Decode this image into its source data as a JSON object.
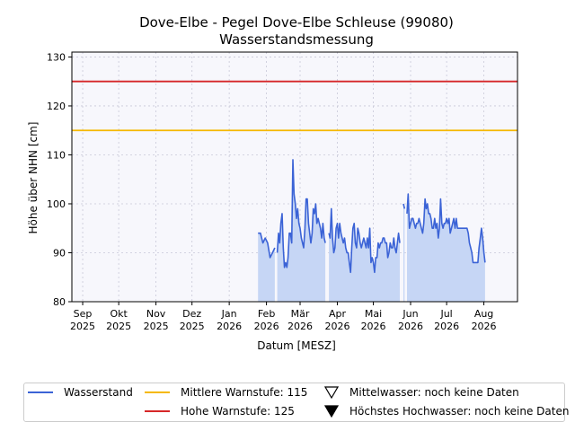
{
  "colors": {
    "line": "#3b63d6",
    "fill": "#c6d6f5",
    "mittlere": "#f5b800",
    "hohe": "#d62728",
    "plot_bg": "#f7f7fc",
    "grid": "#c8c8d8"
  },
  "chart_data": {
    "type": "area",
    "title": "Dove-Elbe - Pegel Dove-Elbe Schleuse (99080)",
    "subtitle": "Wasserstandsmessung",
    "xlabel": "Datum [MESZ]",
    "ylabel": "Höhe über NHN [cm]",
    "xlim": [
      "2025-08-23",
      "2026-08-29"
    ],
    "ylim": [
      80,
      131
    ],
    "yticks": [
      80,
      90,
      100,
      110,
      120,
      130
    ],
    "grid": true,
    "legend_position": "bottom",
    "xticks": [
      {
        "date": "2025-09-01",
        "month": "Sep",
        "year": "2025"
      },
      {
        "date": "2025-10-01",
        "month": "Okt",
        "year": "2025"
      },
      {
        "date": "2025-11-01",
        "month": "Nov",
        "year": "2025"
      },
      {
        "date": "2025-12-01",
        "month": "Dez",
        "year": "2025"
      },
      {
        "date": "2026-01-01",
        "month": "Jan",
        "year": "2026"
      },
      {
        "date": "2026-02-01",
        "month": "Feb",
        "year": "2026"
      },
      {
        "date": "2026-03-01",
        "month": "Mär",
        "year": "2026"
      },
      {
        "date": "2026-04-01",
        "month": "Apr",
        "year": "2026"
      },
      {
        "date": "2026-05-01",
        "month": "Mai",
        "year": "2026"
      },
      {
        "date": "2026-06-01",
        "month": "Jun",
        "year": "2026"
      },
      {
        "date": "2026-07-01",
        "month": "Jul",
        "year": "2026"
      },
      {
        "date": "2026-08-01",
        "month": "Aug",
        "year": "2026"
      }
    ],
    "thresholds": [
      {
        "name": "Mittlere Warnstufe: 115",
        "value": 115
      },
      {
        "name": "Hohe Warnstufe: 125",
        "value": 125
      }
    ],
    "series": [
      {
        "name": "Wasserstand",
        "segments": [
          [
            [
              "2026-01-25",
              94
            ],
            [
              "2026-01-27",
              94
            ],
            [
              "2026-01-29",
              92
            ],
            [
              "2026-01-31",
              93
            ],
            [
              "2026-02-02",
              92
            ],
            [
              "2026-02-04",
              89
            ],
            [
              "2026-02-06",
              90
            ],
            [
              "2026-02-08",
              91
            ]
          ],
          [
            [
              "2026-02-10",
              90
            ],
            [
              "2026-02-11",
              94
            ],
            [
              "2026-02-12",
              92
            ],
            [
              "2026-02-13",
              96
            ],
            [
              "2026-02-14",
              98
            ],
            [
              "2026-02-15",
              91
            ],
            [
              "2026-02-16",
              87
            ],
            [
              "2026-02-17",
              88
            ],
            [
              "2026-02-18",
              87
            ],
            [
              "2026-02-19",
              89
            ],
            [
              "2026-02-20",
              94
            ],
            [
              "2026-02-21",
              94
            ],
            [
              "2026-02-22",
              92
            ],
            [
              "2026-02-23",
              109
            ],
            [
              "2026-02-24",
              102
            ],
            [
              "2026-02-25",
              100
            ],
            [
              "2026-02-26",
              97
            ],
            [
              "2026-02-27",
              99
            ],
            [
              "2026-02-28",
              96
            ],
            [
              "2026-03-01",
              95
            ],
            [
              "2026-03-02",
              93
            ],
            [
              "2026-03-03",
              92
            ],
            [
              "2026-03-04",
              91
            ],
            [
              "2026-03-05",
              95
            ],
            [
              "2026-03-06",
              101
            ],
            [
              "2026-03-07",
              101
            ],
            [
              "2026-03-08",
              96
            ],
            [
              "2026-03-09",
              94
            ],
            [
              "2026-03-10",
              92
            ],
            [
              "2026-03-11",
              94
            ],
            [
              "2026-03-12",
              99
            ],
            [
              "2026-03-13",
              98
            ],
            [
              "2026-03-14",
              100
            ],
            [
              "2026-03-15",
              96
            ],
            [
              "2026-03-16",
              97
            ],
            [
              "2026-03-17",
              96
            ],
            [
              "2026-03-18",
              95
            ],
            [
              "2026-03-19",
              93
            ],
            [
              "2026-03-20",
              96
            ],
            [
              "2026-03-21",
              93
            ],
            [
              "2026-03-22",
              92
            ]
          ],
          [
            [
              "2026-03-25",
              94
            ],
            [
              "2026-03-26",
              93
            ],
            [
              "2026-03-27",
              99
            ],
            [
              "2026-03-28",
              93
            ],
            [
              "2026-03-29",
              90
            ],
            [
              "2026-03-30",
              91
            ],
            [
              "2026-03-31",
              95
            ],
            [
              "2026-04-01",
              96
            ],
            [
              "2026-04-02",
              93
            ],
            [
              "2026-04-03",
              96
            ],
            [
              "2026-04-04",
              94
            ],
            [
              "2026-04-05",
              93
            ],
            [
              "2026-04-06",
              92
            ],
            [
              "2026-04-07",
              93
            ],
            [
              "2026-04-08",
              91
            ],
            [
              "2026-04-09",
              90
            ],
            [
              "2026-04-10",
              90
            ],
            [
              "2026-04-11",
              88
            ],
            [
              "2026-04-12",
              86
            ],
            [
              "2026-04-13",
              91
            ],
            [
              "2026-04-14",
              95
            ],
            [
              "2026-04-15",
              96
            ],
            [
              "2026-04-16",
              92
            ],
            [
              "2026-04-17",
              91
            ],
            [
              "2026-04-18",
              95
            ],
            [
              "2026-04-19",
              94
            ],
            [
              "2026-04-20",
              92
            ],
            [
              "2026-04-21",
              91
            ],
            [
              "2026-04-22",
              92
            ],
            [
              "2026-04-23",
              93
            ],
            [
              "2026-04-24",
              92
            ],
            [
              "2026-04-25",
              91
            ],
            [
              "2026-04-26",
              93
            ],
            [
              "2026-04-27",
              91
            ],
            [
              "2026-04-28",
              95
            ],
            [
              "2026-04-29",
              88
            ],
            [
              "2026-04-30",
              89
            ],
            [
              "2026-05-01",
              88
            ],
            [
              "2026-05-02",
              86
            ],
            [
              "2026-05-03",
              89
            ],
            [
              "2026-05-04",
              89
            ],
            [
              "2026-05-05",
              92
            ],
            [
              "2026-05-06",
              91
            ],
            [
              "2026-05-07",
              92
            ],
            [
              "2026-05-08",
              92
            ],
            [
              "2026-05-09",
              93
            ],
            [
              "2026-05-10",
              93
            ],
            [
              "2026-05-11",
              92
            ],
            [
              "2026-05-12",
              92
            ],
            [
              "2026-05-13",
              89
            ],
            [
              "2026-05-14",
              90
            ],
            [
              "2026-05-15",
              92
            ],
            [
              "2026-05-16",
              91
            ],
            [
              "2026-05-17",
              91
            ],
            [
              "2026-05-18",
              93
            ],
            [
              "2026-05-19",
              91
            ],
            [
              "2026-05-20",
              90
            ],
            [
              "2026-05-21",
              92
            ],
            [
              "2026-05-22",
              94
            ],
            [
              "2026-05-23",
              92
            ]
          ],
          [
            [
              "2026-05-26",
              100
            ],
            [
              "2026-05-27",
              99
            ]
          ],
          [
            [
              "2026-05-29",
              98
            ],
            [
              "2026-05-30",
              102
            ],
            [
              "2026-05-31",
              95
            ],
            [
              "2026-06-01",
              96
            ],
            [
              "2026-06-02",
              97
            ],
            [
              "2026-06-03",
              97
            ],
            [
              "2026-06-04",
              96
            ],
            [
              "2026-06-05",
              95
            ],
            [
              "2026-06-06",
              96
            ],
            [
              "2026-06-07",
              96
            ],
            [
              "2026-06-08",
              97
            ],
            [
              "2026-06-09",
              96
            ],
            [
              "2026-06-10",
              95
            ],
            [
              "2026-06-11",
              94
            ],
            [
              "2026-06-12",
              96
            ],
            [
              "2026-06-13",
              101
            ],
            [
              "2026-06-14",
              99
            ],
            [
              "2026-06-15",
              100
            ],
            [
              "2026-06-16",
              98
            ],
            [
              "2026-06-17",
              98
            ],
            [
              "2026-06-18",
              97
            ],
            [
              "2026-06-19",
              95
            ],
            [
              "2026-06-20",
              95
            ],
            [
              "2026-06-21",
              97
            ],
            [
              "2026-06-22",
              95
            ],
            [
              "2026-06-23",
              96
            ],
            [
              "2026-06-24",
              93
            ],
            [
              "2026-06-25",
              95
            ],
            [
              "2026-06-26",
              101
            ],
            [
              "2026-06-27",
              96
            ],
            [
              "2026-06-28",
              95
            ],
            [
              "2026-06-29",
              96
            ],
            [
              "2026-06-30",
              96
            ],
            [
              "2026-07-01",
              97
            ],
            [
              "2026-07-02",
              96
            ],
            [
              "2026-07-03",
              97
            ],
            [
              "2026-07-04",
              94
            ],
            [
              "2026-07-05",
              95
            ],
            [
              "2026-07-06",
              96
            ],
            [
              "2026-07-07",
              97
            ],
            [
              "2026-07-08",
              95
            ],
            [
              "2026-07-09",
              97
            ],
            [
              "2026-07-10",
              95
            ],
            [
              "2026-07-11",
              95
            ],
            [
              "2026-07-12",
              95
            ],
            [
              "2026-07-13",
              95
            ],
            [
              "2026-07-14",
              95
            ],
            [
              "2026-07-15",
              95
            ],
            [
              "2026-07-16",
              95
            ],
            [
              "2026-07-17",
              95
            ],
            [
              "2026-07-18",
              95
            ],
            [
              "2026-07-19",
              94
            ],
            [
              "2026-07-20",
              92
            ],
            [
              "2026-07-21",
              91
            ],
            [
              "2026-07-22",
              90
            ],
            [
              "2026-07-23",
              88
            ],
            [
              "2026-07-24",
              88
            ],
            [
              "2026-07-25",
              88
            ],
            [
              "2026-07-26",
              88
            ],
            [
              "2026-07-27",
              88
            ],
            [
              "2026-07-28",
              91
            ],
            [
              "2026-07-29",
              93
            ],
            [
              "2026-07-30",
              95
            ],
            [
              "2026-07-31",
              93
            ],
            [
              "2026-08-01",
              90
            ],
            [
              "2026-08-02",
              88
            ]
          ]
        ]
      }
    ]
  },
  "legend": {
    "wasserstand": "Wasserstand",
    "mittlere": "Mittlere Warnstufe: 115",
    "hohe": "Hohe Warnstufe: 125",
    "mittelwasser": "Mittelwasser: noch keine Daten",
    "hochwasser": "Höchstes Hochwasser: noch keine Daten"
  }
}
